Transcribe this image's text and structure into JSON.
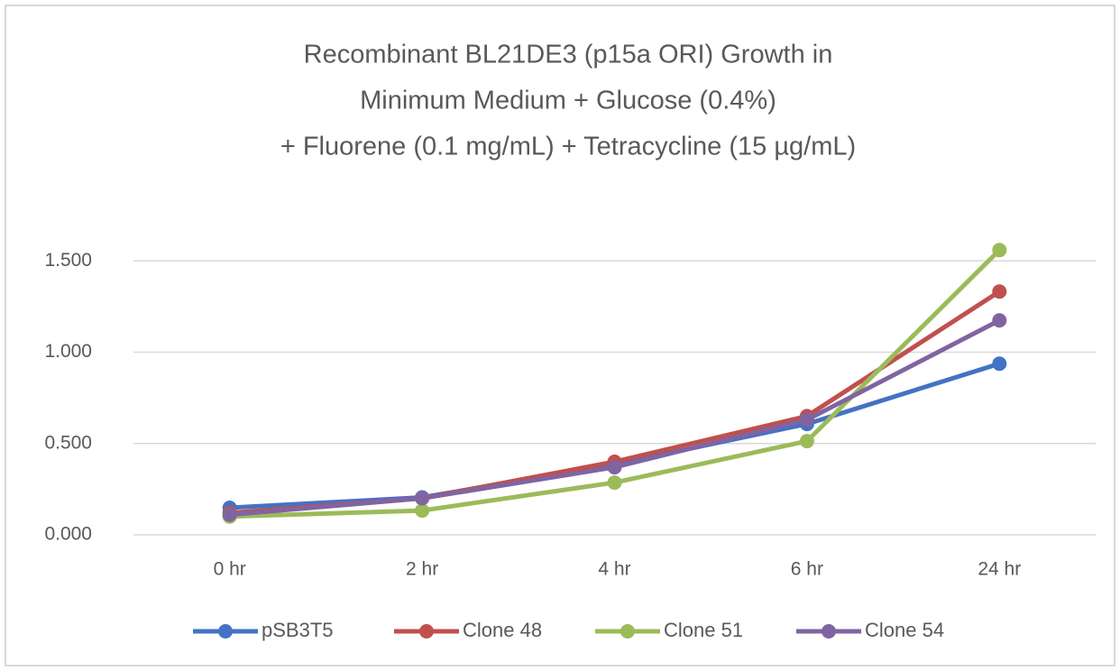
{
  "chart_data": {
    "type": "line",
    "title": [
      "Recombinant BL21DE3 (p15a ORI) Growth in",
      "Minimum Medium + Glucose (0.4%)",
      "+ Fluorene (0.1 mg/mL) + Tetracycline (15 µg/mL)"
    ],
    "categories": [
      "0 hr",
      "2 hr",
      "4 hr",
      "6 hr",
      "24 hr"
    ],
    "series": [
      {
        "name": "pSB3T5",
        "color": "#4472c4",
        "values": [
          0.148,
          0.205,
          0.385,
          0.607,
          0.937
        ]
      },
      {
        "name": "Clone 48",
        "color": "#c0504d",
        "values": [
          0.12,
          0.2,
          0.4,
          0.65,
          1.332
        ]
      },
      {
        "name": "Clone 51",
        "color": "#9bbb59",
        "values": [
          0.1,
          0.133,
          0.286,
          0.513,
          1.559
        ]
      },
      {
        "name": "Clone 54",
        "color": "#8064a2",
        "values": [
          0.11,
          0.2,
          0.37,
          0.63,
          1.174
        ]
      }
    ],
    "ylim": [
      0,
      1.6
    ],
    "yticks": [
      {
        "value": 0,
        "label": "0.000"
      },
      {
        "value": 0.5,
        "label": "0.500"
      },
      {
        "value": 1,
        "label": "1.000"
      },
      {
        "value": 1.5,
        "label": "1.500"
      }
    ],
    "grid": true,
    "legend": "bottom"
  }
}
